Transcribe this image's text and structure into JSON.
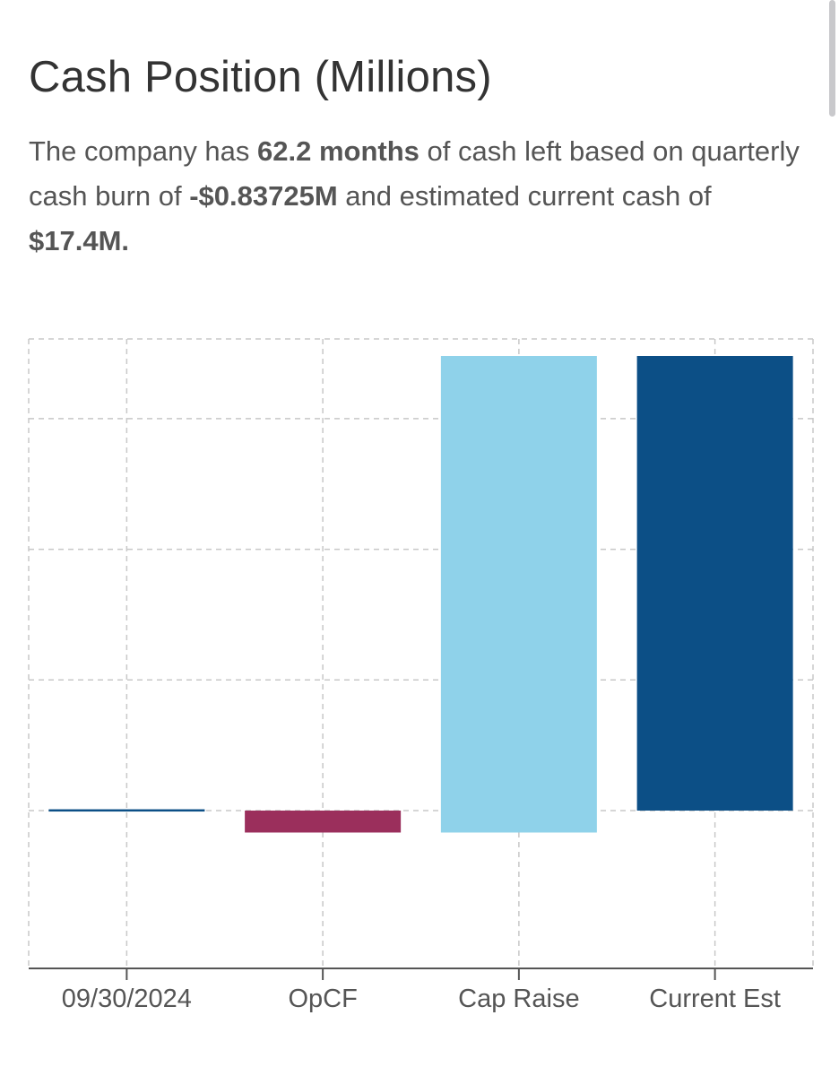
{
  "header": {
    "title": "Cash Position (Millions)"
  },
  "summary": {
    "part1": "The company has ",
    "months": "62.2 months",
    "part2": " of cash left based on quarterly cash burn of ",
    "burn": "-$0.83725M",
    "part3": " and estimated current cash of ",
    "cash": "$17.4M.",
    "part4": ""
  },
  "colors": {
    "starting_cash": "#0c4f86",
    "opcf": "#9b2f5c",
    "cap_raise": "#8fd2ea",
    "current_est": "#0c4f86",
    "grid": "#c8c8c8",
    "axis": "#555555",
    "tick_label": "#555555"
  },
  "chart_data": {
    "type": "bar",
    "subtype": "waterfall",
    "categories": [
      "09/30/2024",
      "OpCF",
      "Cap Raise",
      "Current Est"
    ],
    "bars": [
      {
        "category": "09/30/2024",
        "start": 0,
        "end": 0.05,
        "color_key": "starting_cash"
      },
      {
        "category": "OpCF",
        "start": 0,
        "end": -0.84,
        "color_key": "opcf"
      },
      {
        "category": "Cap Raise",
        "start": -0.84,
        "end": 17.4,
        "color_key": "cap_raise"
      },
      {
        "category": "Current Est",
        "start": 0,
        "end": 17.4,
        "color_key": "current_est"
      }
    ],
    "ylim": [
      -1.0,
      17.6
    ],
    "y_gridlines": [
      0,
      5,
      10,
      15
    ],
    "grid": true,
    "legend": "none",
    "xlabel": "",
    "ylabel": ""
  }
}
